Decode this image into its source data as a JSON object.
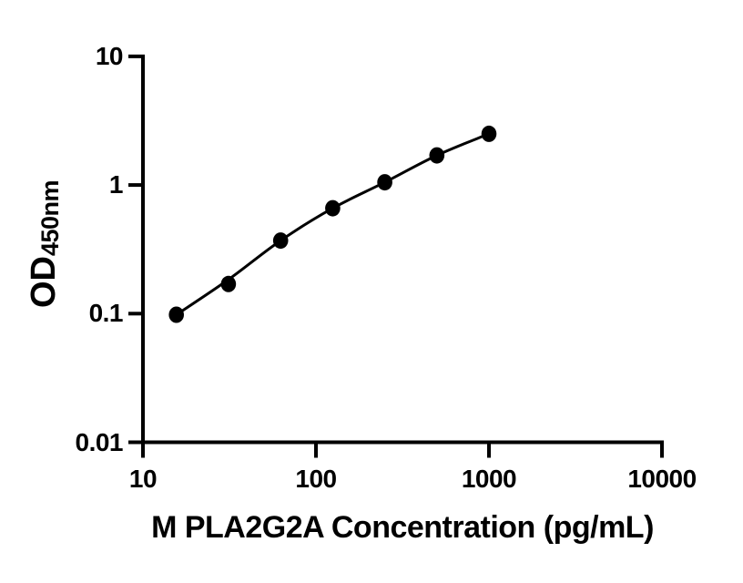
{
  "chart_data": {
    "type": "line",
    "title": "",
    "xlabel": "M PLA2G2A Concentration (pg/mL)",
    "ylabel_main": "OD",
    "ylabel_sub": "450nm",
    "x_scale": "log",
    "y_scale": "log",
    "xlim": [
      10,
      10000
    ],
    "ylim": [
      0.01,
      10
    ],
    "x_ticks": [
      10,
      100,
      1000,
      10000
    ],
    "x_ticklabels": [
      "10",
      "100",
      "1000",
      "10000"
    ],
    "y_ticks": [
      10,
      1,
      0.1,
      0.01
    ],
    "y_ticklabels": [
      "10",
      "1",
      "0.1",
      "0.01"
    ],
    "grid": false,
    "legend": "none",
    "series": [
      {
        "name": "standard-curve-points",
        "marker": "filled-circle",
        "x": [
          15.6,
          31.2,
          62.5,
          125,
          250,
          500,
          1000
        ],
        "y": [
          0.098,
          0.17,
          0.37,
          0.66,
          1.05,
          1.7,
          2.5
        ]
      }
    ],
    "fit_line": {
      "name": "fitted-standard-curve",
      "x": [
        15.6,
        31.2,
        62.5,
        125,
        250,
        500,
        1000
      ],
      "y": [
        0.098,
        0.184,
        0.37,
        0.66,
        1.05,
        1.7,
        2.5
      ]
    },
    "colors": {
      "marker": "#000000",
      "line": "#000000",
      "axis": "#000000",
      "text": "#000000",
      "background": "#ffffff"
    }
  }
}
